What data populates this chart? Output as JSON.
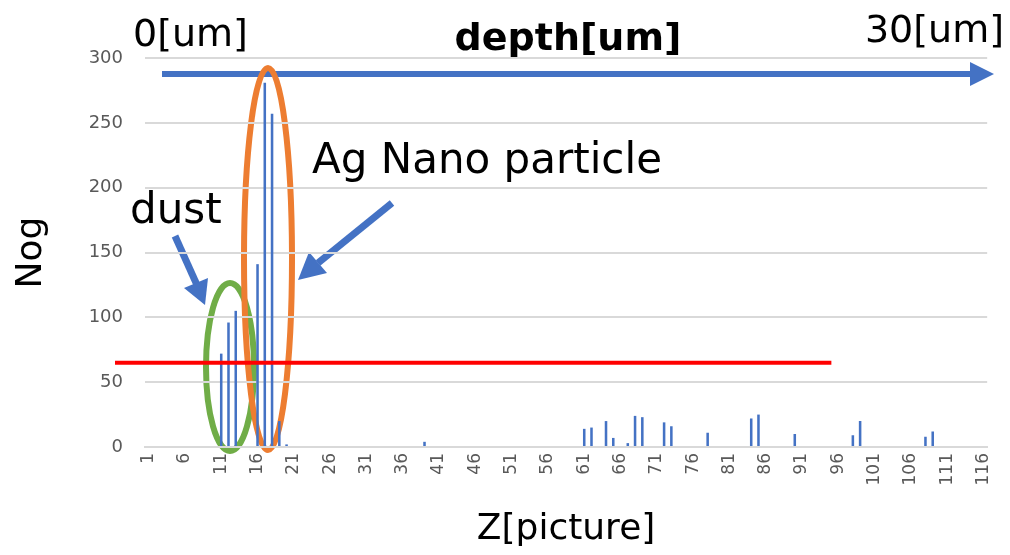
{
  "chart_data": {
    "type": "bar",
    "xlabel": "Z[picture]",
    "ylabel": "Nog",
    "categories": [
      "1",
      null,
      null,
      null,
      null,
      "6",
      null,
      null,
      null,
      null,
      "11",
      null,
      null,
      null,
      null,
      "16",
      null,
      null,
      null,
      null,
      "21",
      null,
      null,
      null,
      null,
      "26",
      null,
      null,
      null,
      null,
      "31",
      null,
      null,
      null,
      null,
      "36",
      null,
      null,
      null,
      null,
      "41",
      null,
      null,
      null,
      null,
      "46",
      null,
      null,
      null,
      null,
      "51",
      null,
      null,
      null,
      null,
      "56",
      null,
      null,
      null,
      null,
      "61",
      null,
      null,
      null,
      null,
      "66",
      null,
      null,
      null,
      null,
      "71",
      null,
      null,
      null,
      null,
      "76",
      null,
      null,
      null,
      null,
      "81",
      null,
      null,
      null,
      null,
      "86",
      null,
      null,
      null,
      null,
      "91",
      null,
      null,
      null,
      null,
      "96",
      null,
      null,
      null,
      null,
      "101",
      null,
      null,
      null,
      null,
      "106",
      null,
      null,
      null,
      null,
      "111",
      null,
      null,
      null,
      null,
      "116"
    ],
    "series": [
      {
        "color": "#4472c4",
        "values": [
          0,
          0,
          0,
          0,
          0,
          0,
          0,
          0,
          0,
          0,
          72,
          96,
          105,
          null,
          null,
          141,
          281,
          257,
          20,
          2,
          0,
          0,
          0,
          0,
          0,
          0,
          0,
          0,
          0,
          0,
          0,
          0,
          0,
          0,
          0,
          0,
          0,
          0,
          4,
          0,
          0,
          0,
          0,
          0,
          0,
          0,
          0,
          0,
          0,
          0,
          0,
          0,
          0,
          0,
          0,
          0,
          0,
          0,
          0,
          0,
          14,
          15,
          0,
          20,
          7,
          0,
          3,
          24,
          23,
          0,
          0,
          19,
          16,
          0,
          0,
          0,
          0,
          11,
          0,
          0,
          0,
          0,
          0,
          22,
          25,
          0,
          0,
          0,
          0,
          10,
          0,
          0,
          0,
          0,
          0,
          0,
          0,
          9,
          20,
          0,
          0,
          0,
          0,
          0,
          0,
          0,
          0,
          8,
          12,
          0,
          0,
          0,
          0,
          0,
          0,
          0
        ]
      }
    ],
    "ylim": [
      0,
      300
    ],
    "yticks": [
      0,
      50,
      100,
      150,
      200,
      250,
      300
    ],
    "grid": "y",
    "legend": false,
    "ref_lines": [
      {
        "axis": "y",
        "value": 65,
        "color": "#ff0000"
      }
    ],
    "annotations": [
      "0[um]",
      "depth[um]",
      "30[um]",
      "dust",
      "Ag Nano particle"
    ]
  }
}
